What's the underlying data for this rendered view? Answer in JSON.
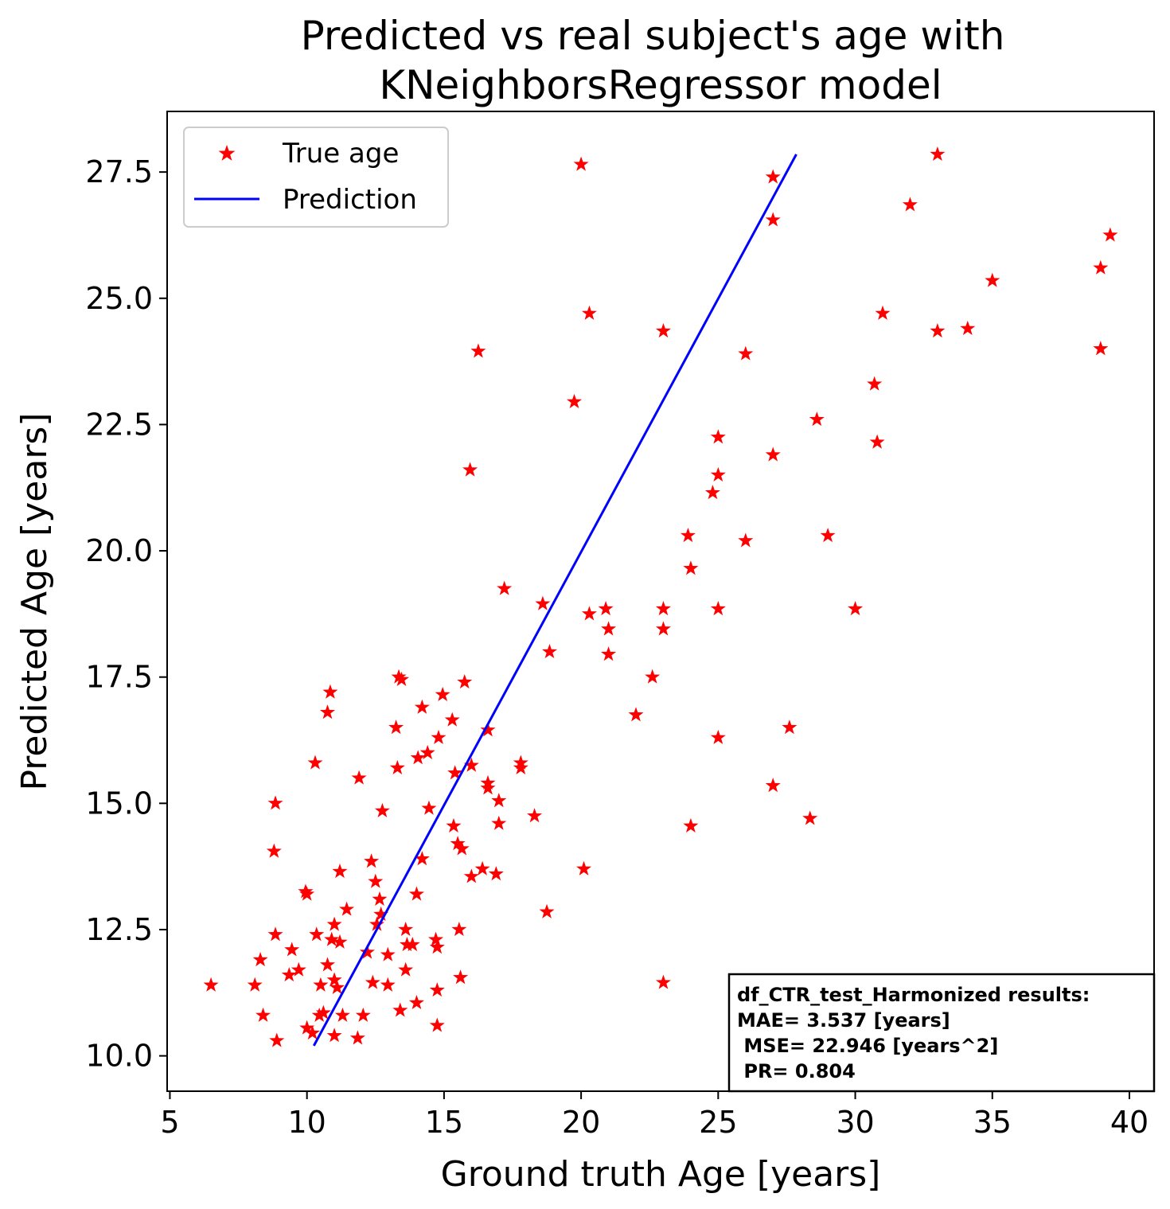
{
  "chart_data": {
    "type": "scatter",
    "title": [
      "Predicted vs real subject's age with",
      "KNeighborsRegressor model"
    ],
    "xlabel": "Ground truth Age [years]",
    "ylabel": "Predicted Age [years]",
    "xlim": [
      4.9,
      40.9
    ],
    "ylim": [
      9.3,
      28.7
    ],
    "xticks": [
      5,
      10,
      15,
      20,
      25,
      30,
      35,
      40
    ],
    "yticks": [
      10.0,
      12.5,
      15.0,
      17.5,
      20.0,
      22.5,
      25.0,
      27.5
    ],
    "grid": false,
    "legend": {
      "placement": "top-left",
      "entries": [
        {
          "label": "True age",
          "marker": "star",
          "color": "#ff0000"
        },
        {
          "label": "Prediction",
          "marker": "line",
          "color": "#0000ff"
        }
      ]
    },
    "series": [
      {
        "name": "True age",
        "kind": "scatter",
        "marker": "star",
        "color": "#ff0000",
        "points": [
          [
            6.5,
            11.4
          ],
          [
            8.1,
            11.4
          ],
          [
            8.3,
            11.9
          ],
          [
            8.4,
            10.8
          ],
          [
            8.8,
            14.05
          ],
          [
            8.85,
            15.0
          ],
          [
            8.85,
            12.4
          ],
          [
            8.9,
            10.3
          ],
          [
            9.35,
            11.6
          ],
          [
            9.45,
            12.1
          ],
          [
            9.7,
            11.7
          ],
          [
            9.95,
            13.25
          ],
          [
            10.0,
            13.2
          ],
          [
            10.0,
            10.55
          ],
          [
            10.2,
            10.45
          ],
          [
            10.3,
            15.8
          ],
          [
            10.35,
            12.4
          ],
          [
            10.45,
            10.8
          ],
          [
            10.5,
            11.4
          ],
          [
            10.6,
            10.85
          ],
          [
            10.75,
            16.8
          ],
          [
            10.75,
            11.8
          ],
          [
            10.85,
            17.2
          ],
          [
            10.9,
            12.3
          ],
          [
            11.0,
            12.6
          ],
          [
            11.0,
            11.5
          ],
          [
            11.0,
            10.4
          ],
          [
            11.1,
            11.35
          ],
          [
            11.2,
            12.25
          ],
          [
            11.2,
            13.65
          ],
          [
            11.3,
            10.8
          ],
          [
            11.45,
            12.9
          ],
          [
            11.85,
            10.35
          ],
          [
            11.9,
            15.5
          ],
          [
            12.05,
            10.8
          ],
          [
            12.2,
            12.05
          ],
          [
            12.35,
            13.85
          ],
          [
            12.4,
            11.45
          ],
          [
            12.5,
            13.45
          ],
          [
            12.55,
            12.6
          ],
          [
            12.65,
            13.1
          ],
          [
            12.7,
            12.8
          ],
          [
            12.75,
            14.85
          ],
          [
            12.95,
            12.0
          ],
          [
            12.95,
            11.4
          ],
          [
            13.25,
            16.5
          ],
          [
            13.3,
            15.7
          ],
          [
            13.35,
            17.5
          ],
          [
            13.4,
            10.9
          ],
          [
            13.45,
            17.45
          ],
          [
            13.6,
            12.5
          ],
          [
            13.6,
            11.7
          ],
          [
            13.65,
            12.2
          ],
          [
            13.85,
            12.2
          ],
          [
            14.0,
            13.2
          ],
          [
            14.0,
            11.05
          ],
          [
            14.05,
            15.9
          ],
          [
            14.2,
            16.9
          ],
          [
            14.2,
            13.9
          ],
          [
            14.4,
            16.0
          ],
          [
            14.45,
            14.9
          ],
          [
            14.7,
            12.3
          ],
          [
            14.75,
            12.15
          ],
          [
            14.75,
            11.3
          ],
          [
            14.75,
            10.6
          ],
          [
            14.8,
            16.3
          ],
          [
            14.95,
            17.15
          ],
          [
            15.3,
            16.65
          ],
          [
            15.35,
            14.55
          ],
          [
            15.4,
            15.6
          ],
          [
            15.5,
            14.2
          ],
          [
            15.55,
            12.5
          ],
          [
            15.6,
            11.55
          ],
          [
            15.65,
            14.1
          ],
          [
            15.75,
            17.4
          ],
          [
            16.0,
            13.55
          ],
          [
            16.0,
            15.75
          ],
          [
            16.25,
            23.95
          ],
          [
            16.4,
            13.7
          ],
          [
            16.6,
            16.45
          ],
          [
            16.6,
            15.4
          ],
          [
            16.6,
            15.3
          ],
          [
            16.9,
            13.6
          ],
          [
            17.0,
            15.05
          ],
          [
            17.0,
            14.6
          ],
          [
            17.2,
            19.25
          ],
          [
            17.8,
            15.8
          ],
          [
            17.8,
            15.7
          ],
          [
            18.3,
            14.75
          ],
          [
            18.6,
            18.95
          ],
          [
            18.75,
            12.85
          ],
          [
            18.85,
            18.0
          ],
          [
            15.95,
            21.6
          ],
          [
            19.75,
            22.95
          ],
          [
            20.0,
            27.65
          ],
          [
            20.1,
            13.7
          ],
          [
            20.3,
            24.7
          ],
          [
            20.3,
            18.75
          ],
          [
            20.9,
            18.85
          ],
          [
            21.0,
            18.45
          ],
          [
            21.0,
            17.95
          ],
          [
            22.0,
            16.75
          ],
          [
            22.6,
            17.5
          ],
          [
            23.0,
            24.35
          ],
          [
            23.0,
            18.85
          ],
          [
            23.0,
            18.45
          ],
          [
            23.0,
            11.45
          ],
          [
            23.9,
            20.3
          ],
          [
            24.0,
            19.65
          ],
          [
            24.0,
            14.55
          ],
          [
            24.8,
            21.15
          ],
          [
            25.0,
            22.25
          ],
          [
            25.0,
            21.5
          ],
          [
            25.0,
            18.85
          ],
          [
            25.0,
            16.3
          ],
          [
            26.0,
            23.9
          ],
          [
            26.0,
            20.2
          ],
          [
            27.0,
            27.4
          ],
          [
            27.0,
            26.55
          ],
          [
            27.0,
            21.9
          ],
          [
            27.0,
            15.35
          ],
          [
            27.6,
            16.5
          ],
          [
            28.35,
            14.7
          ],
          [
            28.6,
            22.6
          ],
          [
            29.0,
            20.3
          ],
          [
            30.0,
            18.85
          ],
          [
            30.7,
            23.3
          ],
          [
            30.8,
            22.15
          ],
          [
            31.0,
            24.7
          ],
          [
            32.0,
            26.85
          ],
          [
            33.0,
            27.85
          ],
          [
            33.0,
            24.35
          ],
          [
            34.1,
            24.4
          ],
          [
            35.0,
            25.35
          ],
          [
            38.95,
            25.6
          ],
          [
            38.95,
            24.0
          ],
          [
            39.3,
            26.25
          ]
        ]
      },
      {
        "name": "Prediction",
        "kind": "line",
        "color": "#0000ff",
        "points": [
          [
            10.25,
            10.2
          ],
          [
            27.85,
            27.85
          ]
        ]
      }
    ],
    "annotation": {
      "placement": "bottom-right",
      "lines": [
        "df_CTR_test_Harmonized results:",
        "MAE= 3.537 [years]",
        " MSE= 22.946 [years^2]",
        " PR= 0.804"
      ]
    }
  }
}
